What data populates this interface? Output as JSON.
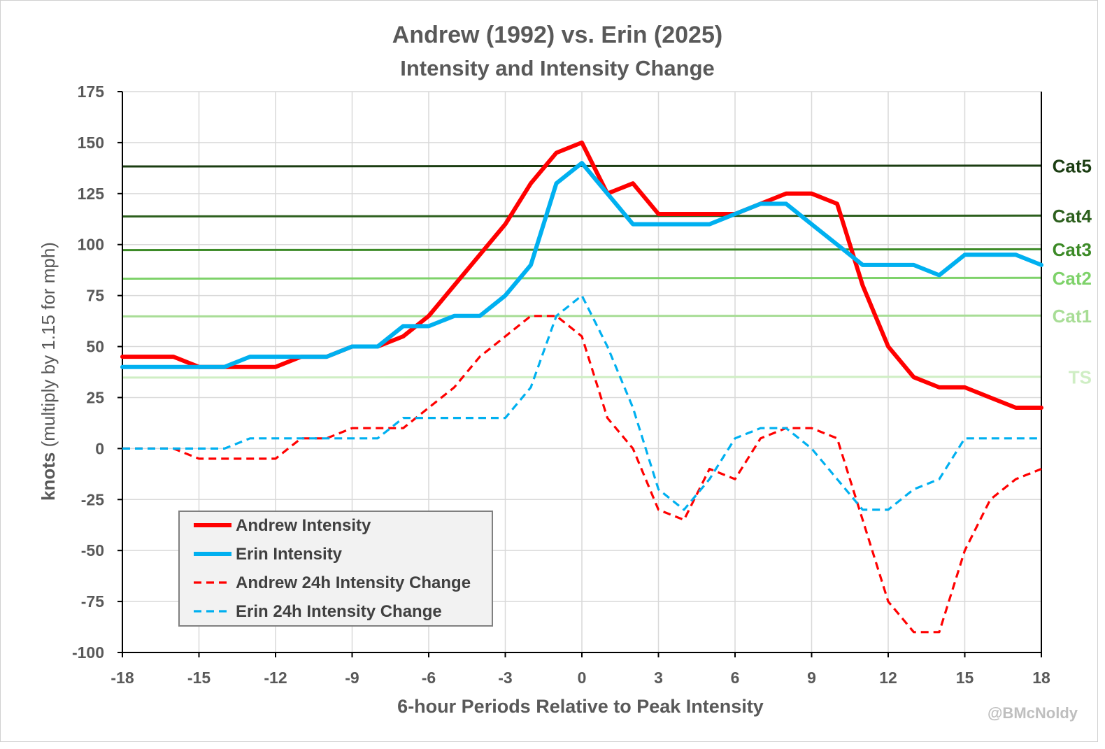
{
  "title": "Andrew (1992) vs. Erin (2025)",
  "subtitle": "Intensity and Intensity Change",
  "ylabel_bold": "knots",
  "ylabel_rest": " (multiply by 1.15 for mph)",
  "xlabel": "6-hour Periods Relative to Peak Intensity",
  "credit": "@BMcNoldy",
  "chart_data": {
    "type": "line",
    "title": "Andrew (1992) vs. Erin (2025)",
    "subtitle": "Intensity and Intensity Change",
    "xlabel": "6-hour Periods Relative to Peak Intensity",
    "ylabel": "knots (multiply by 1.15 for mph)",
    "xlim": [
      -18,
      18
    ],
    "ylim": [
      -100,
      175
    ],
    "xticks": [
      -18,
      -15,
      -12,
      -9,
      -6,
      -3,
      0,
      3,
      6,
      9,
      12,
      15,
      18
    ],
    "yticks": [
      175,
      150,
      125,
      100,
      75,
      50,
      25,
      0,
      -25,
      -50,
      -75,
      -100
    ],
    "grid": true,
    "legend": "bottom-left",
    "x": [
      -18,
      -17,
      -16,
      -15,
      -14,
      -13,
      -12,
      -11,
      -10,
      -9,
      -8,
      -7,
      -6,
      -5,
      -4,
      -3,
      -2,
      -1,
      0,
      1,
      2,
      3,
      4,
      5,
      6,
      7,
      8,
      9,
      10,
      11,
      12,
      13,
      14,
      15,
      16,
      17,
      18
    ],
    "series": [
      {
        "name": "Andrew Intensity",
        "color": "#ff0000",
        "style": "solid",
        "values": [
          45,
          45,
          45,
          40,
          40,
          40,
          40,
          45,
          45,
          50,
          50,
          55,
          65,
          80,
          95,
          110,
          130,
          145,
          150,
          125,
          130,
          115,
          115,
          115,
          115,
          120,
          125,
          125,
          120,
          80,
          50,
          35,
          30,
          30,
          25,
          20,
          20
        ]
      },
      {
        "name": "Erin Intensity",
        "color": "#00b0f0",
        "style": "solid",
        "values": [
          40,
          40,
          40,
          40,
          40,
          45,
          45,
          45,
          45,
          50,
          50,
          60,
          60,
          65,
          65,
          75,
          90,
          130,
          140,
          125,
          110,
          110,
          110,
          110,
          115,
          120,
          120,
          110,
          100,
          90,
          90,
          90,
          85,
          95,
          95,
          95,
          90
        ]
      },
      {
        "name": "Andrew 24h Intensity Change",
        "color": "#ff0000",
        "style": "dashed",
        "values": [
          0,
          0,
          0,
          -5,
          -5,
          -5,
          -5,
          5,
          5,
          10,
          10,
          10,
          20,
          30,
          45,
          55,
          65,
          65,
          55,
          15,
          0,
          -30,
          -35,
          -10,
          -15,
          5,
          10,
          10,
          5,
          -35,
          -75,
          -90,
          -90,
          -50,
          -25,
          -15,
          -10
        ]
      },
      {
        "name": "Erin 24h Intensity Change",
        "color": "#00b0f0",
        "style": "dashed",
        "values": [
          0,
          0,
          0,
          0,
          0,
          5,
          5,
          5,
          5,
          5,
          5,
          15,
          15,
          15,
          15,
          15,
          30,
          65,
          75,
          50,
          20,
          -20,
          -30,
          -15,
          5,
          10,
          10,
          0,
          -15,
          -30,
          -30,
          -20,
          -15,
          5,
          5,
          5,
          5
        ]
      }
    ],
    "category_lines": [
      {
        "label": "Cat5",
        "value": 138.5,
        "color": "#1b3d12"
      },
      {
        "label": "Cat4",
        "value": 114,
        "color": "#2c5f1d"
      },
      {
        "label": "Cat3",
        "value": 97.5,
        "color": "#3c8a27"
      },
      {
        "label": "Cat2",
        "value": 83.5,
        "color": "#7ed26a"
      },
      {
        "label": "Cat1",
        "value": 65,
        "color": "#a8dd96"
      },
      {
        "label": "TS",
        "value": 35,
        "color": "#cfeec4"
      }
    ]
  }
}
